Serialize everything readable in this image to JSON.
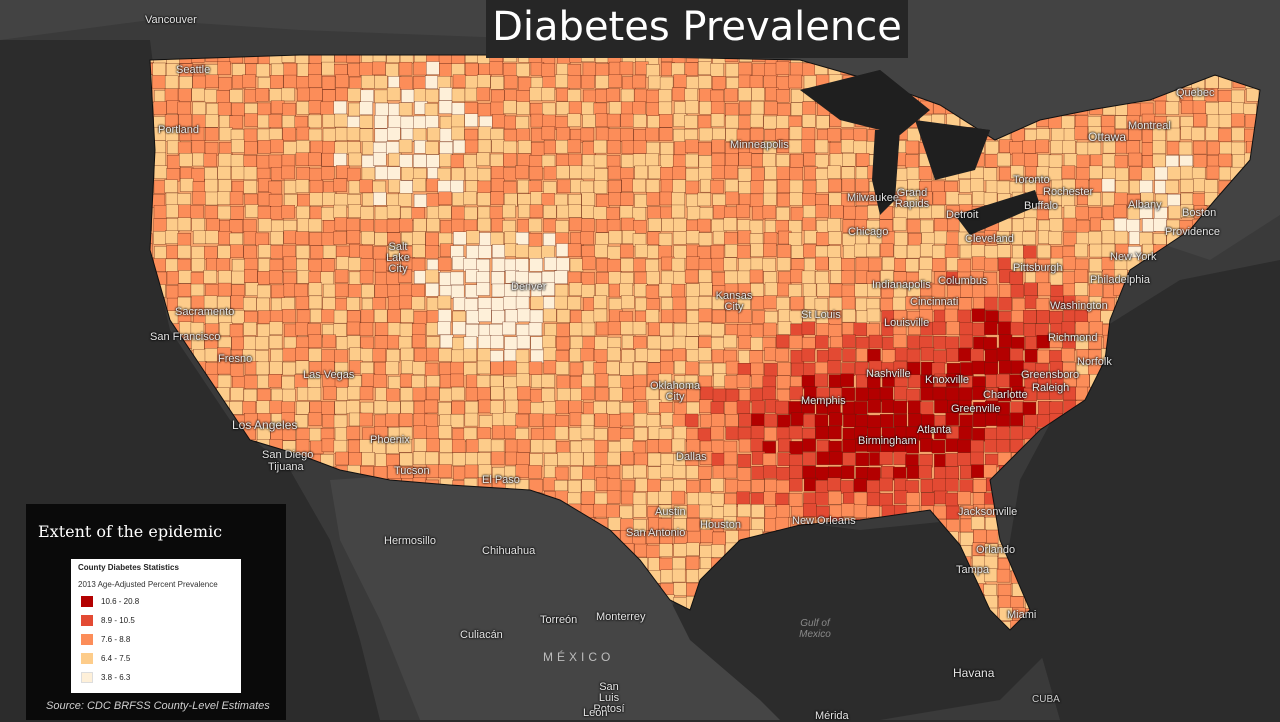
{
  "title": "Diabetes Prevalence",
  "legend": {
    "heading": "Extent of the epidemic",
    "box_title": "County Diabetes Statistics",
    "box_subtitle": "2013 Age-Adjusted Percent Prevalence",
    "classes": [
      {
        "label": "10.6 - 20.8",
        "color": "#b30000"
      },
      {
        "label": "8.9 - 10.5",
        "color": "#e34a33"
      },
      {
        "label": "7.6 - 8.8",
        "color": "#fc8d59"
      },
      {
        "label": "6.4 - 7.5",
        "color": "#fdcc8a"
      },
      {
        "label": "3.8 - 6.3",
        "color": "#fef0d9"
      }
    ]
  },
  "source": "Source: CDC BRFSS County-Level Estimates",
  "cities": {
    "vancouver": "Vancouver",
    "seattle": "Seattle",
    "portland": "Portland",
    "sacramento": "Sacramento",
    "san_francisco": "San Francisco",
    "fresno": "Fresno",
    "las_vegas": "Las Vegas",
    "los_angeles": "Los Angeles",
    "san_diego": "San Diego",
    "tijuana": "Tijuana",
    "phoenix": "Phoenix",
    "tucson": "Tucson",
    "salt_lake_city": "Salt Lake City",
    "denver": "Denver",
    "el_paso": "El Paso",
    "hermosillo": "Hermosillo",
    "chihuahua": "Chihuahua",
    "torreon": "Torreón",
    "monterrey": "Monterrey",
    "culiacan": "Culiacán",
    "san_luis_potosi": "San Luis Potosí",
    "leon": "León",
    "merida": "Mérida",
    "havana": "Havana",
    "dallas": "Dallas",
    "austin": "Austin",
    "san_antonio": "San Antonio",
    "houston": "Houston",
    "oklahoma_city": "Oklahoma City",
    "kansas_city": "Kansas City",
    "st_louis": "St Louis",
    "memphis": "Memphis",
    "nashville": "Nashville",
    "birmingham": "Birmingham",
    "atlanta": "Atlanta",
    "new_orleans": "New Orleans",
    "jacksonville": "Jacksonville",
    "orlando": "Orlando",
    "tampa": "Tampa",
    "miami": "Miami",
    "minneapolis": "Minneapolis",
    "milwaukee": "Milwaukee",
    "chicago": "Chicago",
    "grand_rapids": "Grand Rapids",
    "detroit": "Detroit",
    "indianapolis": "Indianapolis",
    "cincinnati": "Cincinnati",
    "columbus": "Columbus",
    "louisville": "Louisville",
    "cleveland": "Cleveland",
    "pittsburgh": "Pittsburgh",
    "knoxville": "Knoxville",
    "charlotte": "Charlotte",
    "greenville": "Greenville",
    "greensboro": "Greensboro",
    "raleigh": "Raleigh",
    "richmond": "Richmond",
    "norfolk": "Norfolk",
    "washington": "Washington",
    "philadelphia": "Philadelphia",
    "new_york": "New York",
    "boston": "Boston",
    "providence": "Providence",
    "albany": "Albany",
    "buffalo": "Buffalo",
    "rochester": "Rochester",
    "toronto": "Toronto",
    "ottawa": "Ottawa",
    "montreal": "Montreal",
    "quebec": "Quebec",
    "cuba": "CUBA"
  },
  "country_mexico": "MÉXICO",
  "water_gulf": "Gulf of Mexico"
}
